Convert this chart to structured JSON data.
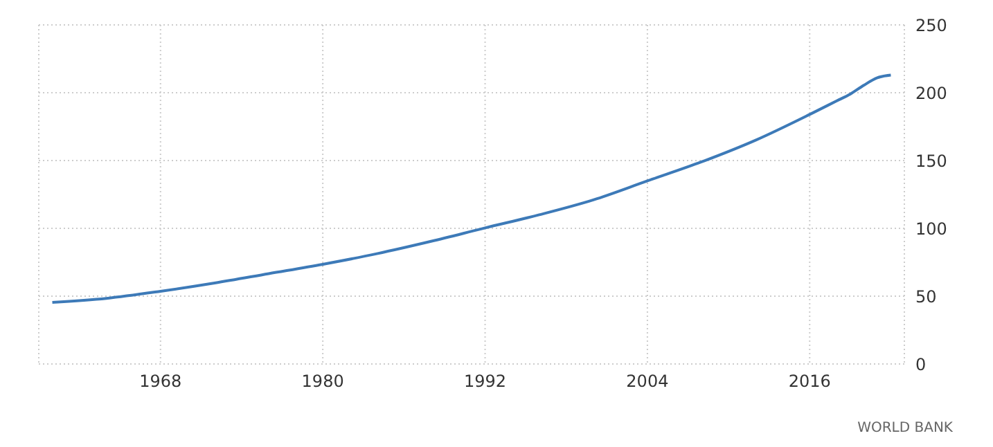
{
  "chart_data": {
    "type": "line",
    "x": [
      1960,
      1964,
      1968,
      1972,
      1976,
      1980,
      1984,
      1988,
      1992,
      1996,
      2000,
      2004,
      2008,
      2012,
      2016,
      2018,
      2019,
      2020,
      2021,
      2022
    ],
    "series": [
      {
        "color": "#3d7ab8",
        "values": [
          45.4,
          48.4,
          53.6,
          59.7,
          66.6,
          73.5,
          81.3,
          90.4,
          100.3,
          110,
          121,
          135,
          149,
          165,
          184,
          194,
          199,
          205.5,
          211,
          213
        ]
      }
    ],
    "xlim": [
      1959,
      2023
    ],
    "xticks": [
      1968,
      1980,
      1992,
      2004,
      2016
    ],
    "ylim": [
      0,
      250
    ],
    "yticks": [
      0,
      50,
      100,
      150,
      200,
      250
    ],
    "grid": true,
    "marker": "none",
    "line_style": "solid",
    "annotations": [
      "WORLD BANK"
    ]
  }
}
